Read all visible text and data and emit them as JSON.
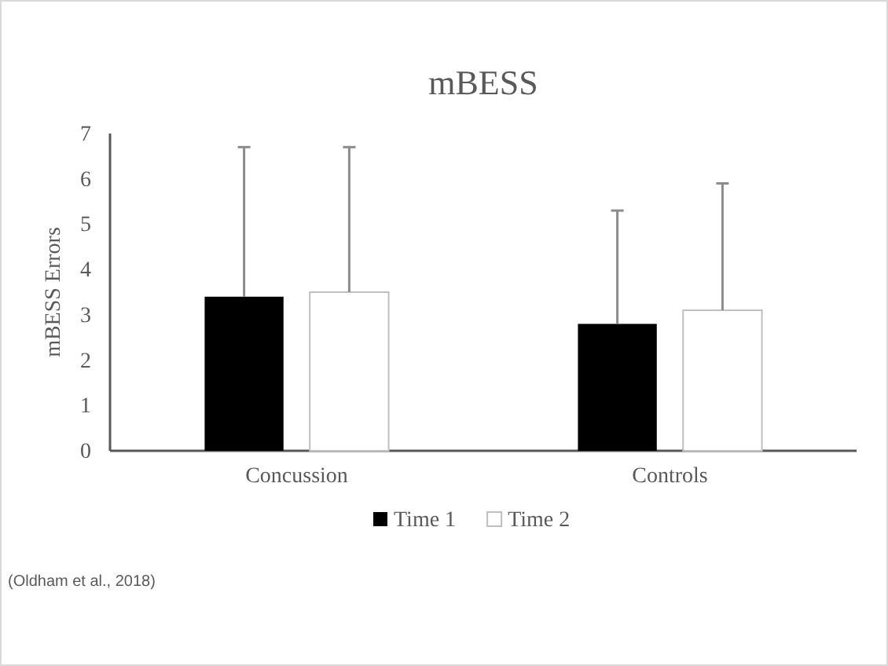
{
  "chart_data": {
    "type": "bar",
    "title": "mBESS",
    "ylabel": "mBESS Errors",
    "categories": [
      "Concussion",
      "Controls"
    ],
    "series": [
      {
        "name": "Time 1",
        "color": "#000000",
        "values": [
          3.4,
          2.8
        ],
        "errors": [
          [
            3.4,
            6.7
          ],
          [
            2.8,
            5.3
          ]
        ]
      },
      {
        "name": "Time 2",
        "color": "#ffffff",
        "values": [
          3.5,
          3.1
        ],
        "errors": [
          [
            3.5,
            6.7
          ],
          [
            3.1,
            5.9
          ]
        ]
      }
    ],
    "ylim": [
      0,
      7
    ],
    "yticks": [
      0,
      1,
      2,
      3,
      4,
      5,
      6,
      7
    ],
    "grid": false,
    "legend": "bottom",
    "annotations": [
      "(Oldham et al., 2018)"
    ]
  }
}
